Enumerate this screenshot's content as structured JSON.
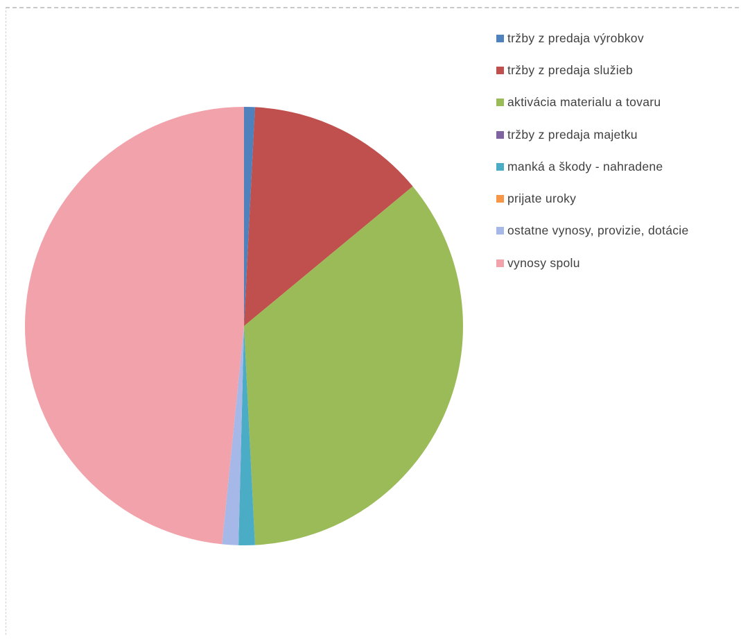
{
  "chart_data": {
    "type": "pie",
    "title": "",
    "series": [
      {
        "name": "tržby z predaja výrobkov",
        "value": 0.8,
        "color": "#4f81bd"
      },
      {
        "name": "tržby z predaja služieb",
        "value": 13.2,
        "color": "#c0504d"
      },
      {
        "name": "aktivácia materialu a tovaru",
        "value": 35.2,
        "color": "#9bbb59"
      },
      {
        "name": "tržby z predaja majetku",
        "value": 0.0,
        "color": "#8064a2"
      },
      {
        "name": "manká a škody - nahradene",
        "value": 1.2,
        "color": "#4bacc6"
      },
      {
        "name": "prijate uroky",
        "value": 0.0,
        "color": "#f79646"
      },
      {
        "name": "ostatne vynosy, provizie, dotácie",
        "value": 1.2,
        "color": "#a5b8e8"
      },
      {
        "name": "vynosy spolu",
        "value": 48.4,
        "color": "#f2a2aa"
      }
    ],
    "legend_position": "right"
  }
}
